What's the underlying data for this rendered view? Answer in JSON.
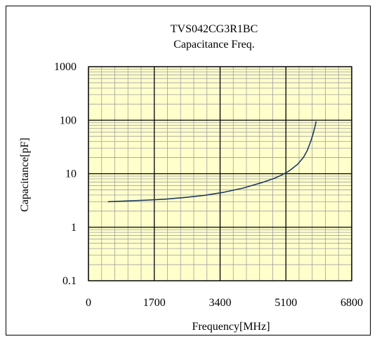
{
  "chart_data": {
    "type": "line",
    "title": "TVS042CG3R1BC",
    "subtitle": "Capacitance Freq.",
    "xlabel": "Frequency[MHz]",
    "ylabel": "Capacitance[pF]",
    "xlim": [
      0,
      6800
    ],
    "ylim": [
      0.1,
      1000
    ],
    "y_scale": "log",
    "x_ticks": [
      0,
      1700,
      3400,
      5100,
      6800
    ],
    "x_tick_labels": [
      "0",
      "1700",
      "3400",
      "5100",
      "6800"
    ],
    "y_ticks": [
      0.1,
      1,
      10,
      100,
      1000
    ],
    "y_tick_labels": [
      "0.1",
      "1",
      "10",
      "100",
      "1000"
    ],
    "grid": true,
    "legend": "none",
    "colors": {
      "plot_background": "#ffffcc",
      "major_grid": "#000000",
      "minor_grid": "#a0a0a0",
      "series_line": "#1f3a5f"
    },
    "series": [
      {
        "x": [
          500,
          1000,
          1500,
          2000,
          2500,
          3000,
          3500,
          4000,
          4500,
          4800,
          5000,
          5200,
          5400,
          5550,
          5650,
          5750,
          5800,
          5850,
          5880
        ],
        "y": [
          3.0,
          3.1,
          3.2,
          3.35,
          3.6,
          3.95,
          4.5,
          5.4,
          6.9,
          8.2,
          9.5,
          11.5,
          15,
          20,
          27,
          42,
          55,
          75,
          95
        ]
      }
    ]
  }
}
